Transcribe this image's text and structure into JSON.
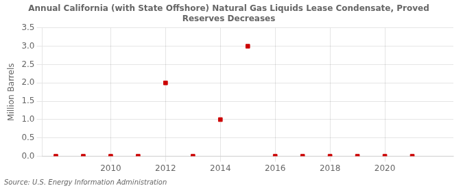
{
  "chart_data": {
    "type": "scatter",
    "title": "Annual California (with State Offshore) Natural Gas Liquids Lease Condensate, Proved\nReserves Decreases",
    "y_label": "Million Barrels",
    "annotation": "Source: U.S. Energy Information Administration",
    "x": [
      2008,
      2009,
      2010,
      2011,
      2012,
      2013,
      2014,
      2015,
      2016,
      2017,
      2018,
      2019,
      2020,
      2021
    ],
    "values": [
      0.0,
      0.0,
      0.0,
      0.0,
      2.0,
      0.0,
      1.0,
      3.0,
      0.0,
      0.0,
      0.0,
      0.0,
      0.0,
      0.0
    ],
    "color": "#cc0000",
    "marker": "square",
    "xlim": [
      2007.5,
      2022.5
    ],
    "xticks": [
      2010,
      2012,
      2014,
      2016,
      2018,
      2020
    ],
    "ylim": [
      0.0,
      3.5
    ],
    "yticks": [
      {
        "value": 0.0,
        "label": "0.0"
      },
      0.5,
      {
        "value": 1.0,
        "label": "1.0"
      },
      1.5,
      {
        "value": 2.0,
        "label": "2.0"
      },
      2.5,
      {
        "value": 3.0,
        "label": "3.0"
      },
      3.5
    ],
    "grid": true
  }
}
